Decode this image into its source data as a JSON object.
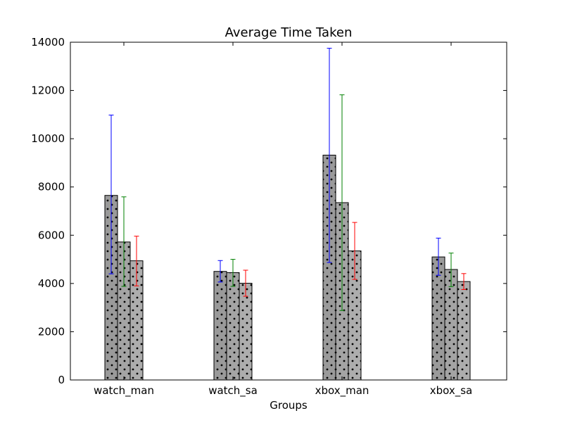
{
  "chart_data": {
    "type": "bar",
    "title": "Average Time Taken",
    "xlabel": "Groups",
    "ylabel": "",
    "ylim": [
      0,
      14000
    ],
    "yticks": [
      0,
      2000,
      4000,
      6000,
      8000,
      10000,
      12000,
      14000
    ],
    "categories": [
      "watch_man",
      "watch_sa",
      "xbox_man",
      "xbox_sa"
    ],
    "grid": false,
    "legend": "none",
    "series": [
      {
        "values": [
          7650,
          4500,
          9320,
          5100
        ],
        "err_low": [
          4400,
          4060,
          4870,
          4340
        ],
        "err_high": [
          10980,
          4950,
          13750,
          5880
        ],
        "error_color": "#0000ff",
        "fill": "#9a9a9a"
      },
      {
        "values": [
          5720,
          4450,
          7350,
          4580
        ],
        "err_low": [
          3880,
          3880,
          2880,
          3870
        ],
        "err_high": [
          7590,
          5000,
          11820,
          5260
        ],
        "error_color": "#008000",
        "fill": "#a4a4a4"
      },
      {
        "values": [
          4940,
          4010,
          5350,
          4080
        ],
        "err_low": [
          3900,
          3470,
          4170,
          3750
        ],
        "err_high": [
          5960,
          4550,
          6530,
          4410
        ],
        "error_color": "#ff0000",
        "fill": "#adadad"
      }
    ]
  }
}
